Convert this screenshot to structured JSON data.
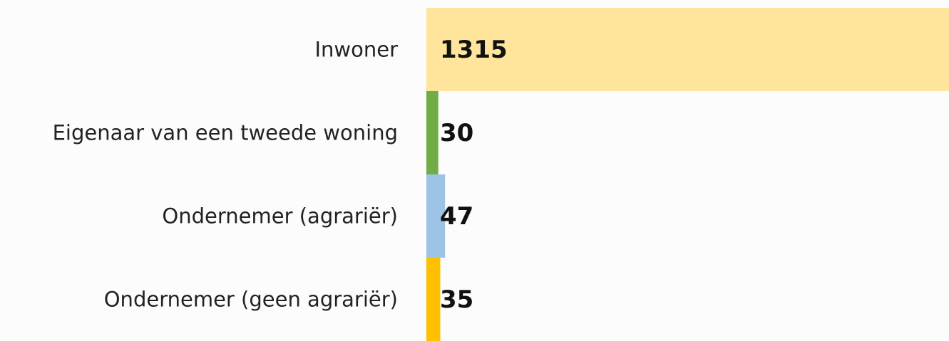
{
  "chart_data": {
    "type": "bar",
    "orientation": "horizontal",
    "categories": [
      "Inwoner",
      "Eigenaar van een tweede woning",
      "Ondernemer (agrariër)",
      "Ondernemer (geen agrariër)"
    ],
    "values": [
      1315,
      30,
      47,
      35
    ],
    "colors": [
      "#fee59b",
      "#70ad47",
      "#9dc3e6",
      "#ffc000"
    ]
  }
}
